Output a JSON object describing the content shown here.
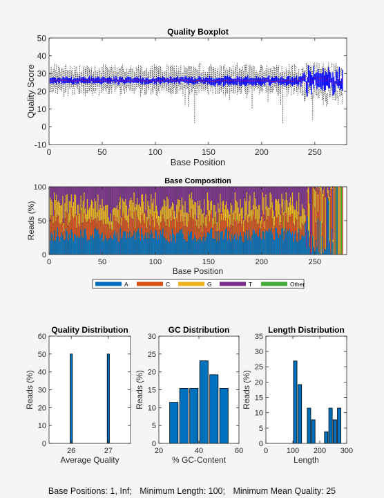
{
  "chart_data": [
    {
      "id": "quality-boxplot",
      "type": "boxplot",
      "title": "Quality Boxplot",
      "xlabel": "Base Position",
      "ylabel": "Quality Score",
      "xlim": [
        0,
        280
      ],
      "ylim": [
        -10,
        50
      ],
      "xticks": [
        0,
        50,
        100,
        150,
        200,
        250
      ],
      "yticks": [
        -10,
        0,
        10,
        20,
        30,
        40,
        50
      ],
      "positions": 276,
      "typical": {
        "median": 26,
        "q1": 25,
        "q3": 27,
        "whisker_low": 21,
        "whisker_high": 33
      },
      "low_outliers": [
        [
          14,
          17
        ],
        [
          24,
          18
        ],
        [
          40,
          20
        ],
        [
          56,
          18
        ],
        [
          86,
          17
        ],
        [
          96,
          18
        ],
        [
          128,
          18
        ],
        [
          128,
          12
        ],
        [
          131,
          11
        ],
        [
          137,
          2
        ],
        [
          146,
          20
        ],
        [
          152,
          20
        ],
        [
          167,
          19
        ],
        [
          170,
          15
        ],
        [
          177,
          18
        ],
        [
          181,
          19
        ],
        [
          186,
          16
        ],
        [
          191,
          10
        ],
        [
          199,
          20
        ],
        [
          206,
          14
        ],
        [
          210,
          19
        ],
        [
          218,
          12
        ],
        [
          220,
          2
        ],
        [
          224,
          17
        ],
        [
          231,
          20
        ],
        [
          240,
          14
        ],
        [
          248,
          4
        ],
        [
          258,
          12
        ],
        [
          260,
          14
        ],
        [
          265,
          17
        ],
        [
          270,
          15
        ]
      ],
      "colors": {
        "box": "#0000ff",
        "whisker": "#000000",
        "median": "#ff0000"
      }
    },
    {
      "id": "base-composition",
      "type": "stacked-bar",
      "title": "Base Composition",
      "xlabel": "Base Position",
      "ylabel": "Reads (%)",
      "xlim": [
        0,
        280
      ],
      "ylim": [
        0,
        100
      ],
      "xticks": [
        0,
        50,
        100,
        150,
        200,
        250
      ],
      "yticks": [
        0,
        50,
        100
      ],
      "positions": 276,
      "approx_fractions": {
        "A": 27,
        "C": 23,
        "G": 23,
        "T": 27,
        "Other": 0
      },
      "series": [
        {
          "name": "A",
          "color": "#0072bd"
        },
        {
          "name": "C",
          "color": "#d95319"
        },
        {
          "name": "G",
          "color": "#edb120"
        },
        {
          "name": "T",
          "color": "#7e2f8e"
        },
        {
          "name": "Other",
          "color": "#44ad3c"
        }
      ],
      "legend": "bottom"
    },
    {
      "id": "quality-distribution",
      "type": "bar",
      "title": "Quality Distribution",
      "xlabel": "Average Quality",
      "ylabel": "Reads (%)",
      "x": [
        26,
        27
      ],
      "values": [
        50,
        50
      ],
      "xlim": [
        25.4,
        27.6
      ],
      "ylim": [
        0,
        60
      ],
      "xticks": [
        26,
        27
      ],
      "yticks": [
        0,
        10,
        20,
        30,
        40,
        50,
        60
      ],
      "bar_width": 0.06
    },
    {
      "id": "gc-distribution",
      "type": "bar",
      "title": "GC Distribution",
      "xlabel": "% GC-Content",
      "ylabel": "Reads (%)",
      "x": [
        27.5,
        32.5,
        37.5,
        42.5,
        47.5,
        52.5
      ],
      "values": [
        11.5,
        15.4,
        15.4,
        23.1,
        19.2,
        15.4
      ],
      "xlim": [
        20,
        60
      ],
      "ylim": [
        0,
        30
      ],
      "xticks": [
        20,
        40,
        60
      ],
      "yticks": [
        0,
        5,
        10,
        15,
        20,
        25,
        30
      ],
      "bar_width": 4.2
    },
    {
      "id": "length-distribution",
      "type": "bar",
      "title": "Length Distribution",
      "xlabel": "Length",
      "ylabel": "Reads (%)",
      "x": [
        109,
        126,
        160,
        176,
        224,
        240,
        256,
        272
      ],
      "values": [
        26.9,
        19.2,
        11.5,
        7.7,
        3.8,
        11.5,
        7.7,
        11.5
      ],
      "xlim": [
        0,
        300
      ],
      "ylim": [
        0,
        35
      ],
      "xticks": [
        0,
        100,
        200,
        300
      ],
      "yticks": [
        0,
        5,
        10,
        15,
        20,
        25,
        30,
        35
      ],
      "bar_width": 13
    }
  ],
  "footer": {
    "base_positions": "Base Positions: 1, Inf;",
    "min_length": "Minimum Length: 100;",
    "min_quality": "Minimum Mean Quality: 25"
  }
}
